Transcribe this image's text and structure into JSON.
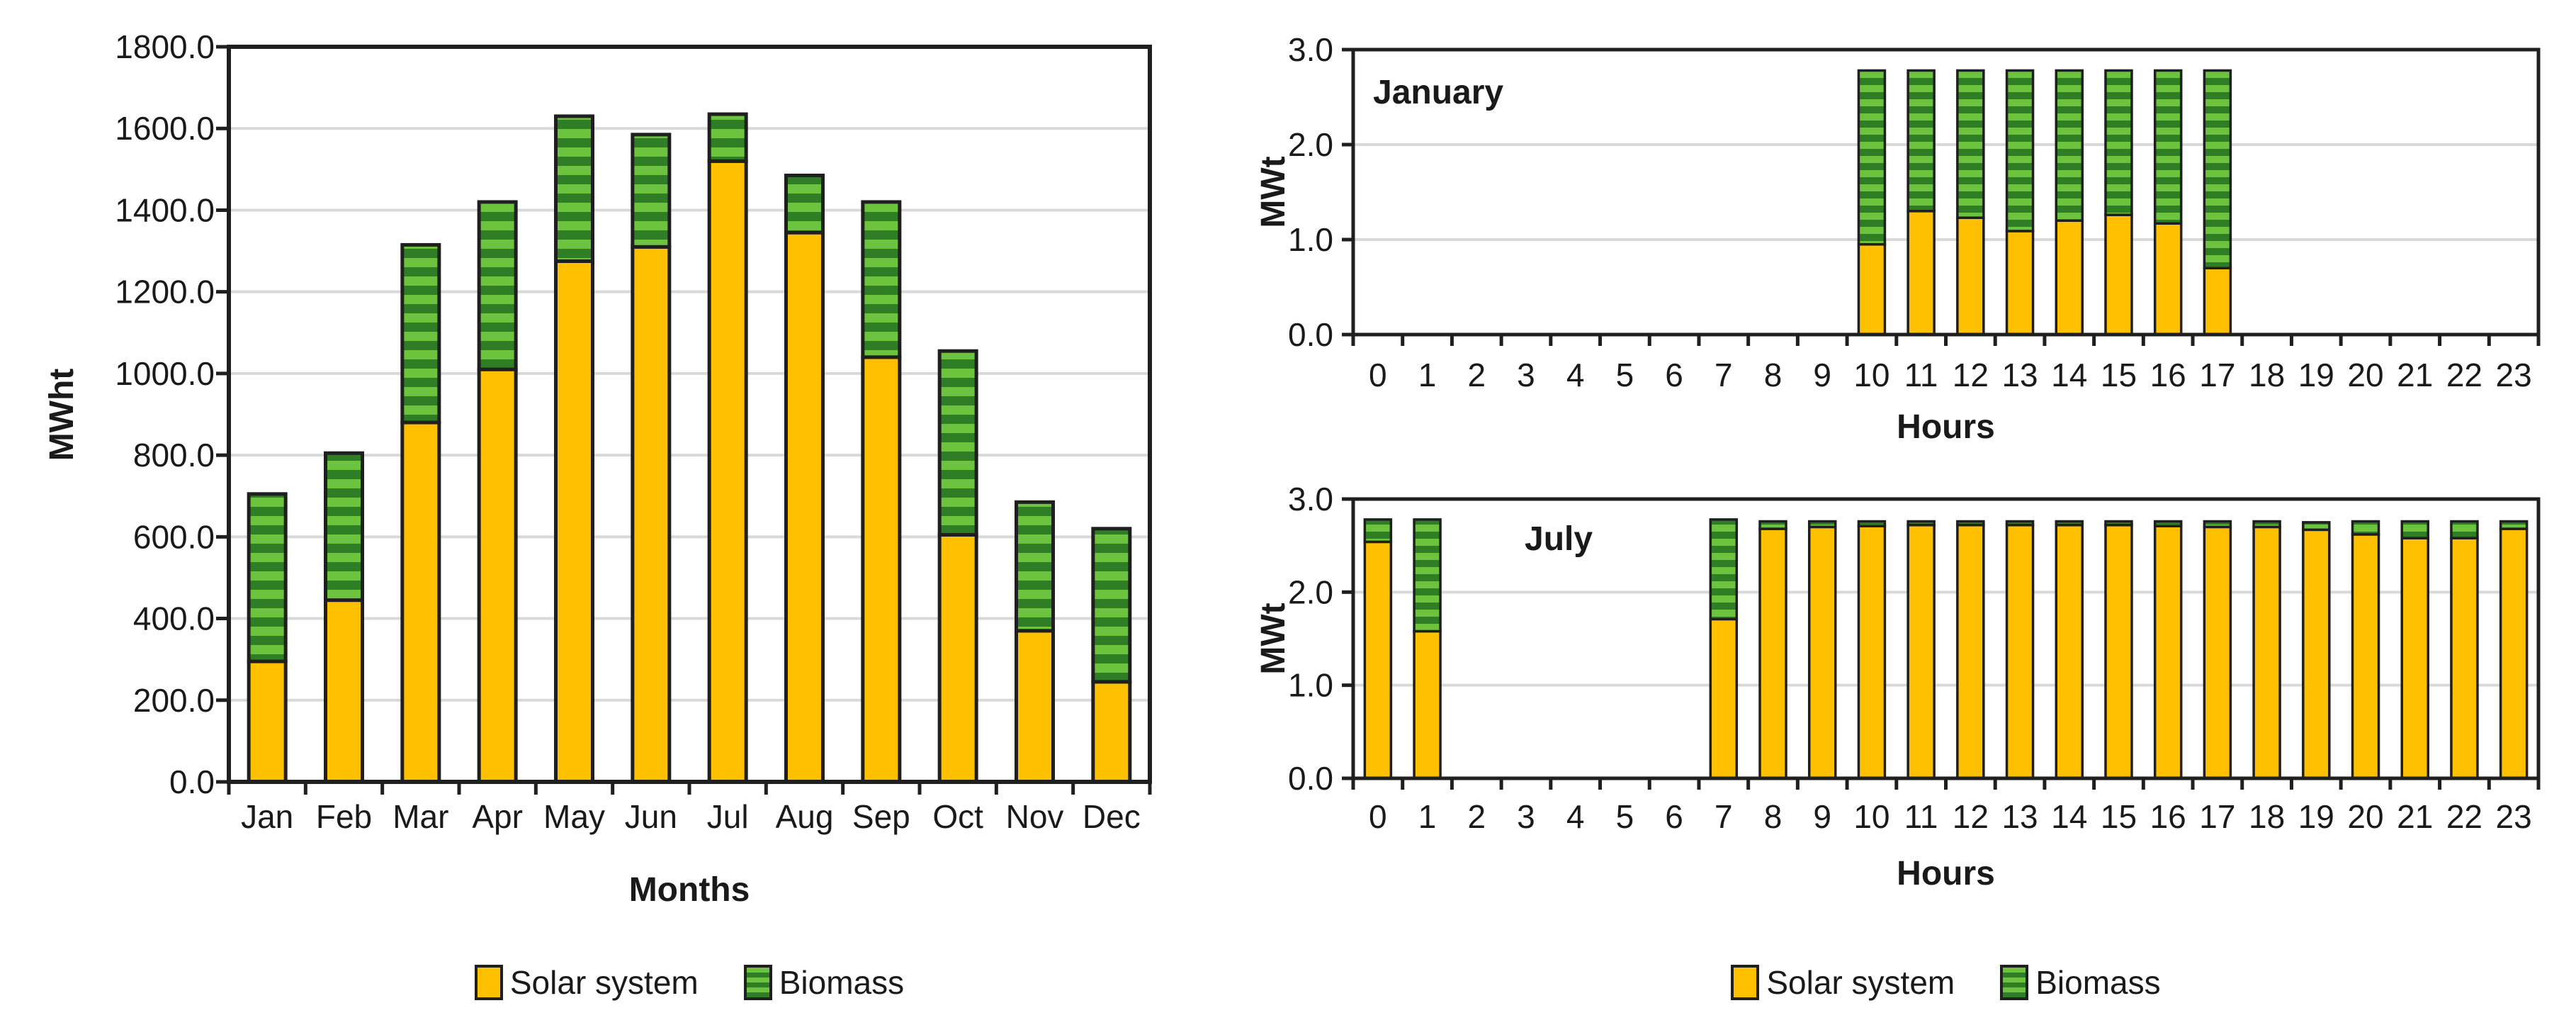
{
  "colors": {
    "solar": "#FFC000",
    "biomass_light": "#6BC33E",
    "biomass_dark": "#2F7E26",
    "frame": "#1F1F1F",
    "gridline": "#D9D9D9",
    "text": "#1A1A1A"
  },
  "legend_left": {
    "solar_label": "Solar system",
    "biomass_label": "Biomass"
  },
  "legend_right": {
    "solar_label": "Solar system",
    "biomass_label": "Biomass"
  },
  "monthly_chart": {
    "ylabel": "MWht",
    "xlabel": "Months"
  },
  "january_chart": {
    "title": "January",
    "ylabel": "MWt",
    "xlabel": "Hours"
  },
  "july_chart": {
    "title": "July",
    "ylabel": "MWt",
    "xlabel": "Hours"
  },
  "chart_data": [
    {
      "id": "monthly",
      "type": "bar",
      "stacked": true,
      "title": "",
      "xlabel": "Months",
      "ylabel": "MWht",
      "ylim": [
        0,
        1800
      ],
      "ytick_step": 200,
      "ytick_labels": [
        "0.0",
        "200.0",
        "400.0",
        "600.0",
        "800.0",
        "1000.0",
        "1200.0",
        "1400.0",
        "1600.0",
        "1800.0"
      ],
      "grid": "horizontal",
      "legend_position": "bottom",
      "categories": [
        "Jan",
        "Feb",
        "Mar",
        "Apr",
        "May",
        "Jun",
        "Jul",
        "Aug",
        "Sep",
        "Oct",
        "Nov",
        "Dec"
      ],
      "series": [
        {
          "name": "Solar system",
          "values": [
            295,
            445,
            880,
            1010,
            1275,
            1310,
            1520,
            1345,
            1040,
            605,
            370,
            245
          ]
        },
        {
          "name": "Biomass",
          "values": [
            410,
            360,
            435,
            410,
            355,
            275,
            115,
            140,
            380,
            450,
            315,
            375
          ]
        }
      ]
    },
    {
      "id": "january",
      "type": "bar",
      "stacked": true,
      "title": "January",
      "xlabel": "Hours",
      "ylabel": "MWt",
      "ylim": [
        0,
        3.0
      ],
      "ytick_step": 1.0,
      "ytick_labels": [
        "0.0",
        "1.0",
        "2.0",
        "3.0"
      ],
      "grid": "horizontal",
      "legend_position": "bottom",
      "categories": [
        "0",
        "1",
        "2",
        "3",
        "4",
        "5",
        "6",
        "7",
        "8",
        "9",
        "10",
        "11",
        "12",
        "13",
        "14",
        "15",
        "16",
        "17",
        "18",
        "19",
        "20",
        "21",
        "22",
        "23"
      ],
      "series": [
        {
          "name": "Solar system",
          "values": [
            0,
            0,
            0,
            0,
            0,
            0,
            0,
            0,
            0,
            0,
            0.95,
            1.3,
            1.23,
            1.09,
            1.2,
            1.26,
            1.17,
            0.7,
            0,
            0,
            0,
            0,
            0,
            0
          ]
        },
        {
          "name": "Biomass",
          "values": [
            0,
            0,
            0,
            0,
            0,
            0,
            0,
            0,
            0,
            0,
            1.83,
            1.48,
            1.55,
            1.69,
            1.58,
            1.52,
            1.61,
            2.08,
            0,
            0,
            0,
            0,
            0,
            0
          ]
        }
      ]
    },
    {
      "id": "july",
      "type": "bar",
      "stacked": true,
      "title": "July",
      "xlabel": "Hours",
      "ylabel": "MWt",
      "ylim": [
        0,
        3.0
      ],
      "ytick_step": 1.0,
      "ytick_labels": [
        "0.0",
        "1.0",
        "2.0",
        "3.0"
      ],
      "grid": "horizontal",
      "legend_position": "bottom",
      "categories": [
        "0",
        "1",
        "2",
        "3",
        "4",
        "5",
        "6",
        "7",
        "8",
        "9",
        "10",
        "11",
        "12",
        "13",
        "14",
        "15",
        "16",
        "17",
        "18",
        "19",
        "20",
        "21",
        "22",
        "23"
      ],
      "series": [
        {
          "name": "Solar system",
          "values": [
            2.54,
            1.58,
            0,
            0,
            0,
            0,
            0,
            1.71,
            2.68,
            2.7,
            2.71,
            2.72,
            2.72,
            2.72,
            2.72,
            2.72,
            2.71,
            2.7,
            2.7,
            2.67,
            2.62,
            2.58,
            2.58,
            2.68
          ]
        },
        {
          "name": "Biomass",
          "values": [
            0.24,
            1.2,
            0,
            0,
            0,
            0,
            0,
            1.07,
            0.08,
            0.06,
            0.05,
            0.04,
            0.04,
            0.04,
            0.04,
            0.04,
            0.05,
            0.06,
            0.06,
            0.08,
            0.14,
            0.18,
            0.18,
            0.08
          ]
        }
      ]
    }
  ]
}
